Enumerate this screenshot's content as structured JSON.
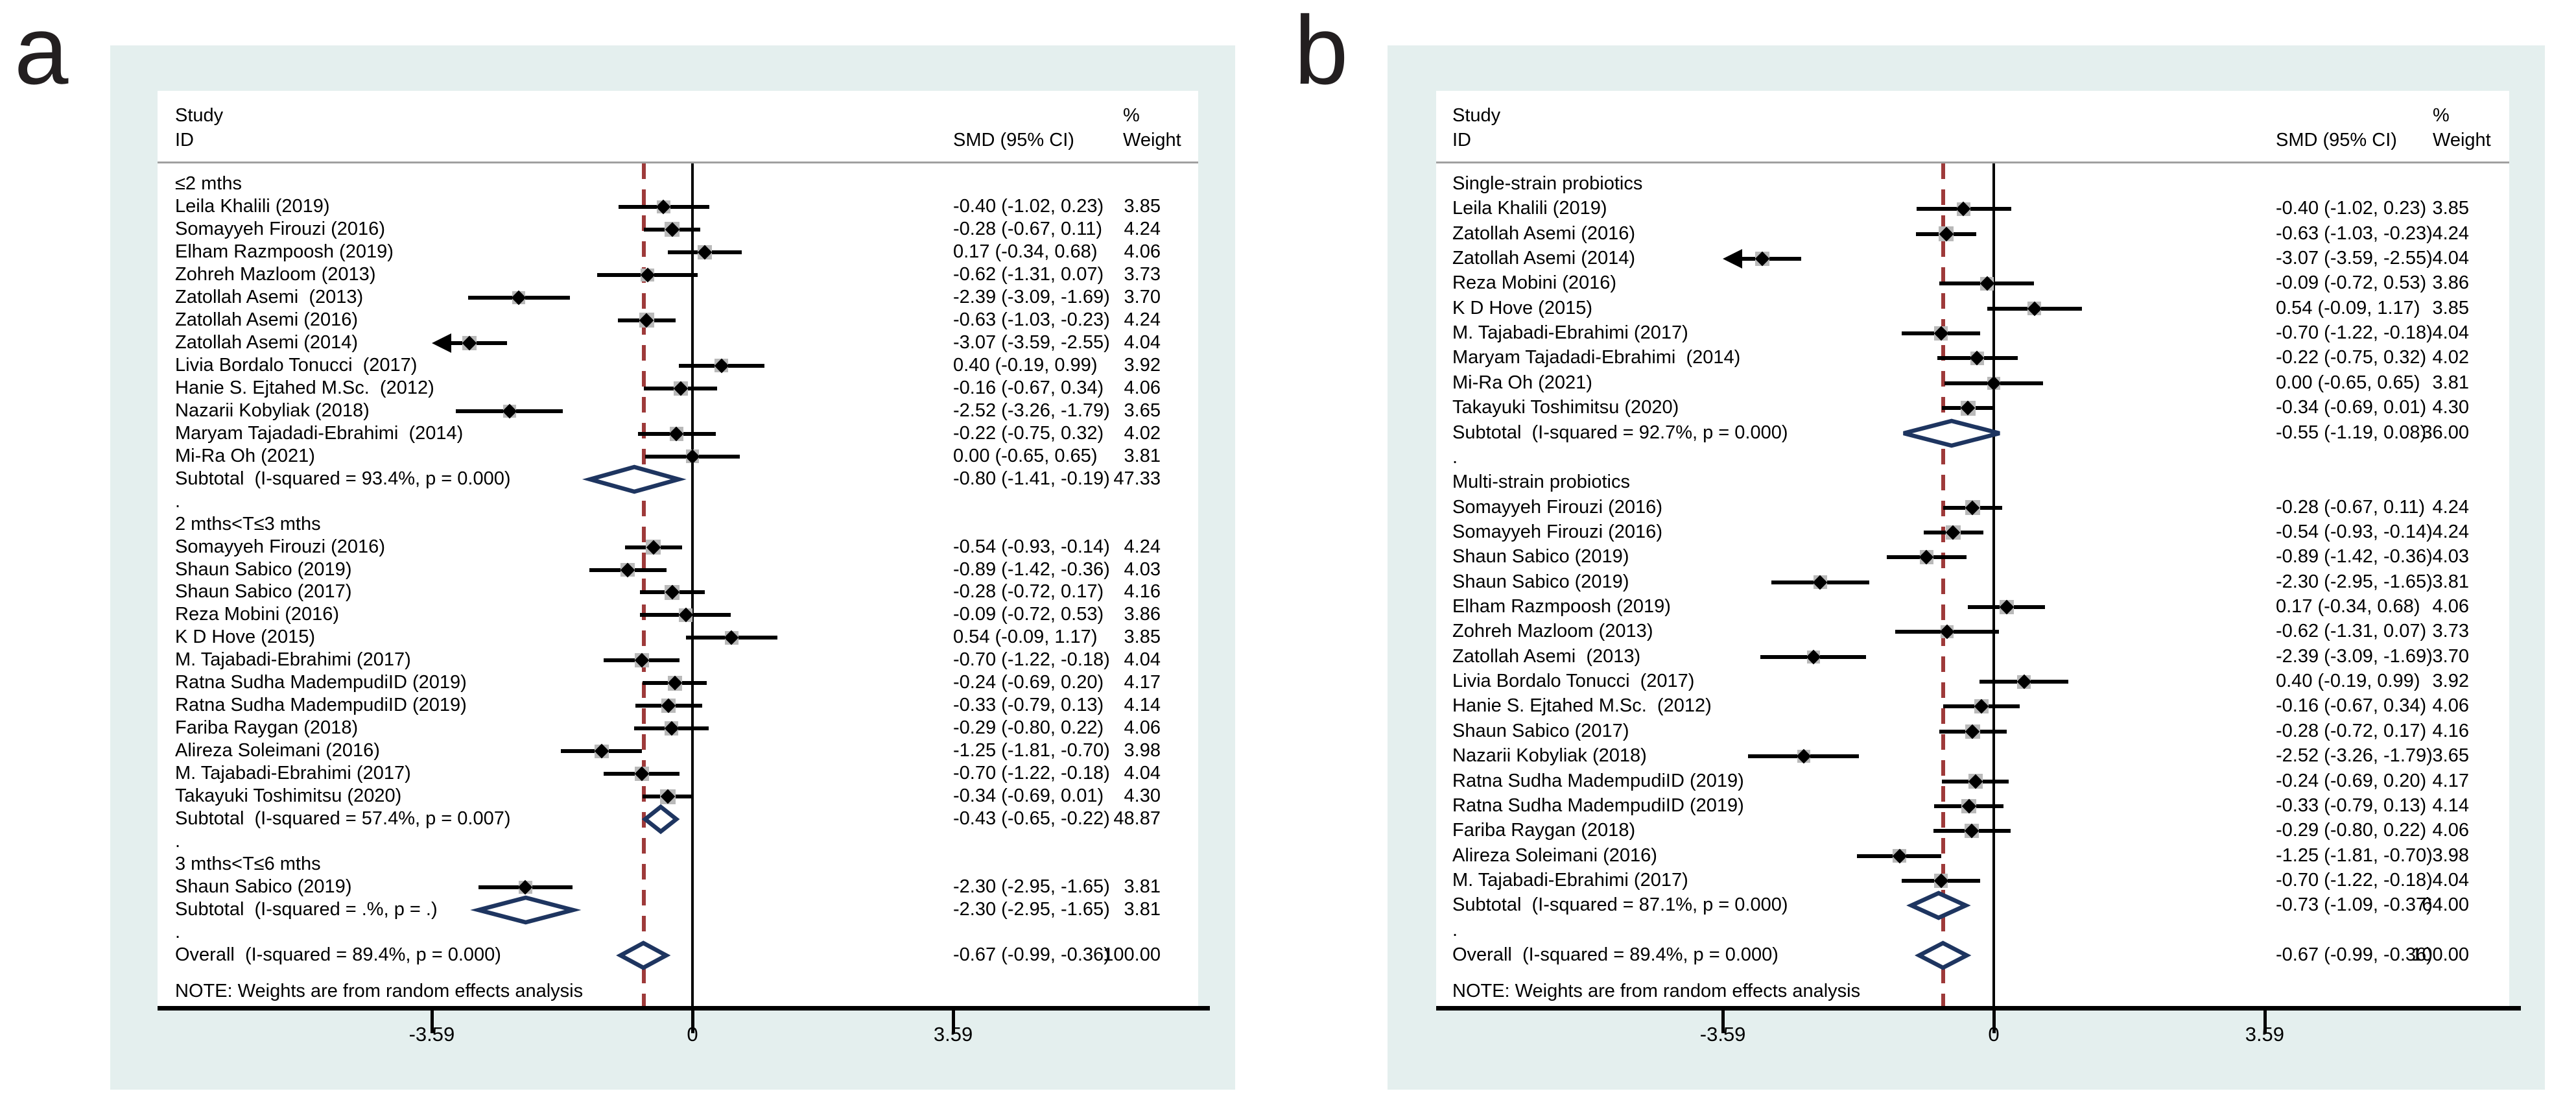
{
  "figure": {
    "panel_letters": [
      "a",
      "b"
    ]
  },
  "chart_data": [
    {
      "type": "forest",
      "panel": "a",
      "header": {
        "study_line1": "Study",
        "study_line2": "ID",
        "pct": "%",
        "smd": "SMD (95% CI)",
        "weight": "Weight"
      },
      "note": "NOTE: Weights are from random effects analysis",
      "axis": {
        "ticks": [
          -3.59,
          0,
          3.59
        ],
        "tick_labels": [
          "-3.59",
          "0",
          "3.59"
        ],
        "null_line": 0,
        "overall_ref_line": -0.67,
        "xlim": [
          -3.59,
          3.59
        ]
      },
      "legend_position": "none",
      "grid": false,
      "rows": [
        {
          "t": "g",
          "label": "≤2 mths"
        },
        {
          "t": "s",
          "label": "Leila Khalili (2019)",
          "est": -0.4,
          "lo": -1.02,
          "hi": 0.23,
          "ci": "-0.40 (-1.02, 0.23)",
          "w": "3.85",
          "wv": 3.85
        },
        {
          "t": "s",
          "label": "Somayyeh Firouzi (2016)",
          "est": -0.28,
          "lo": -0.67,
          "hi": 0.11,
          "ci": "-0.28 (-0.67, 0.11)",
          "w": "4.24",
          "wv": 4.24
        },
        {
          "t": "s",
          "label": "Elham Razmpoosh (2019)",
          "est": 0.17,
          "lo": -0.34,
          "hi": 0.68,
          "ci": "0.17 (-0.34, 0.68)",
          "w": "4.06",
          "wv": 4.06
        },
        {
          "t": "s",
          "label": "Zohreh Mazloom (2013)",
          "est": -0.62,
          "lo": -1.31,
          "hi": 0.07,
          "ci": "-0.62 (-1.31, 0.07)",
          "w": "3.73",
          "wv": 3.73
        },
        {
          "t": "s",
          "label": "Zatollah Asemi  (2013)",
          "est": -2.39,
          "lo": -3.09,
          "hi": -1.69,
          "ci": "-2.39 (-3.09, -1.69)",
          "w": "3.70",
          "wv": 3.7
        },
        {
          "t": "s",
          "label": "Zatollah Asemi (2016)",
          "est": -0.63,
          "lo": -1.03,
          "hi": -0.23,
          "ci": "-0.63 (-1.03, -0.23)",
          "w": "4.24",
          "wv": 4.24
        },
        {
          "t": "s",
          "label": "Zatollah Asemi (2014)",
          "est": -3.07,
          "lo": -3.59,
          "hi": -2.55,
          "ci": "-3.07 (-3.59, -2.55)",
          "w": "4.04",
          "wv": 4.04,
          "arrow": "left"
        },
        {
          "t": "s",
          "label": "Livia Bordalo Tonucci  (2017)",
          "est": 0.4,
          "lo": -0.19,
          "hi": 0.99,
          "ci": "0.40 (-0.19, 0.99)",
          "w": "3.92",
          "wv": 3.92
        },
        {
          "t": "s",
          "label": "Hanie S. Ejtahed M.Sc.  (2012)",
          "est": -0.16,
          "lo": -0.67,
          "hi": 0.34,
          "ci": "-0.16 (-0.67, 0.34)",
          "w": "4.06",
          "wv": 4.06
        },
        {
          "t": "s",
          "label": "Nazarii Kobyliak (2018)",
          "est": -2.52,
          "lo": -3.26,
          "hi": -1.79,
          "ci": "-2.52 (-3.26, -1.79)",
          "w": "3.65",
          "wv": 3.65
        },
        {
          "t": "s",
          "label": "Maryam Tajadadi-Ebrahimi  (2014)",
          "est": -0.22,
          "lo": -0.75,
          "hi": 0.32,
          "ci": "-0.22 (-0.75, 0.32)",
          "w": "4.02",
          "wv": 4.02
        },
        {
          "t": "s",
          "label": "Mi-Ra Oh (2021)",
          "est": 0.0,
          "lo": -0.65,
          "hi": 0.65,
          "ci": "0.00 (-0.65, 0.65)",
          "w": "3.81",
          "wv": 3.81
        },
        {
          "t": "d",
          "label": "Subtotal  (I-squared = 93.4%, p = 0.000)",
          "est": -0.8,
          "lo": -1.41,
          "hi": -0.19,
          "ci": "-0.80 (-1.41, -0.19)",
          "w": "47.33"
        },
        {
          "t": "dot",
          "label": "."
        },
        {
          "t": "g",
          "label": "2 mths<T≤3 mths"
        },
        {
          "t": "s",
          "label": "Somayyeh Firouzi (2016)",
          "est": -0.54,
          "lo": -0.93,
          "hi": -0.14,
          "ci": "-0.54 (-0.93, -0.14)",
          "w": "4.24",
          "wv": 4.24
        },
        {
          "t": "s",
          "label": "Shaun Sabico (2019)",
          "est": -0.89,
          "lo": -1.42,
          "hi": -0.36,
          "ci": "-0.89 (-1.42, -0.36)",
          "w": "4.03",
          "wv": 4.03
        },
        {
          "t": "s",
          "label": "Shaun Sabico (2017)",
          "est": -0.28,
          "lo": -0.72,
          "hi": 0.17,
          "ci": "-0.28 (-0.72, 0.17)",
          "w": "4.16",
          "wv": 4.16
        },
        {
          "t": "s",
          "label": "Reza Mobini (2016)",
          "est": -0.09,
          "lo": -0.72,
          "hi": 0.53,
          "ci": "-0.09 (-0.72, 0.53)",
          "w": "3.86",
          "wv": 3.86
        },
        {
          "t": "s",
          "label": "K D Hove (2015)",
          "est": 0.54,
          "lo": -0.09,
          "hi": 1.17,
          "ci": "0.54 (-0.09, 1.17)",
          "w": "3.85",
          "wv": 3.85
        },
        {
          "t": "s",
          "label": "M. Tajabadi-Ebrahimi (2017)",
          "est": -0.7,
          "lo": -1.22,
          "hi": -0.18,
          "ci": "-0.70 (-1.22, -0.18)",
          "w": "4.04",
          "wv": 4.04
        },
        {
          "t": "s",
          "label": "Ratna Sudha MadempudiID (2019)",
          "est": -0.24,
          "lo": -0.69,
          "hi": 0.2,
          "ci": "-0.24 (-0.69, 0.20)",
          "w": "4.17",
          "wv": 4.17
        },
        {
          "t": "s",
          "label": "Ratna Sudha MadempudiID (2019)",
          "est": -0.33,
          "lo": -0.79,
          "hi": 0.13,
          "ci": "-0.33 (-0.79, 0.13)",
          "w": "4.14",
          "wv": 4.14
        },
        {
          "t": "s",
          "label": "Fariba Raygan (2018)",
          "est": -0.29,
          "lo": -0.8,
          "hi": 0.22,
          "ci": "-0.29 (-0.80, 0.22)",
          "w": "4.06",
          "wv": 4.06
        },
        {
          "t": "s",
          "label": "Alireza Soleimani (2016)",
          "est": -1.25,
          "lo": -1.81,
          "hi": -0.7,
          "ci": "-1.25 (-1.81, -0.70)",
          "w": "3.98",
          "wv": 3.98
        },
        {
          "t": "s",
          "label": "M. Tajabadi-Ebrahimi (2017)",
          "est": -0.7,
          "lo": -1.22,
          "hi": -0.18,
          "ci": "-0.70 (-1.22, -0.18)",
          "w": "4.04",
          "wv": 4.04
        },
        {
          "t": "s",
          "label": "Takayuki Toshimitsu (2020)",
          "est": -0.34,
          "lo": -0.69,
          "hi": 0.01,
          "ci": "-0.34 (-0.69, 0.01)",
          "w": "4.30",
          "wv": 4.3
        },
        {
          "t": "d",
          "label": "Subtotal  (I-squared = 57.4%, p = 0.007)",
          "est": -0.43,
          "lo": -0.65,
          "hi": -0.22,
          "ci": "-0.43 (-0.65, -0.22)",
          "w": "48.87"
        },
        {
          "t": "dot",
          "label": "."
        },
        {
          "t": "g",
          "label": "3 mths<T≤6 mths"
        },
        {
          "t": "s",
          "label": "Shaun Sabico (2019)",
          "est": -2.3,
          "lo": -2.95,
          "hi": -1.65,
          "ci": "-2.30 (-2.95, -1.65)",
          "w": "3.81",
          "wv": 3.81
        },
        {
          "t": "d",
          "label": "Subtotal  (I-squared = .%, p = .)",
          "est": -2.3,
          "lo": -2.95,
          "hi": -1.65,
          "ci": "-2.30 (-2.95, -1.65)",
          "w": "3.81"
        },
        {
          "t": "dot",
          "label": "."
        },
        {
          "t": "o",
          "label": "Overall  (I-squared = 89.4%, p = 0.000)",
          "est": -0.67,
          "lo": -0.99,
          "hi": -0.36,
          "ci": "-0.67 (-0.99, -0.36)",
          "w": "100.00"
        }
      ]
    },
    {
      "type": "forest",
      "panel": "b",
      "header": {
        "study_line1": "Study",
        "study_line2": "ID",
        "pct": "%",
        "smd": "SMD (95% CI)",
        "weight": "Weight"
      },
      "note": "NOTE: Weights are from random effects analysis",
      "axis": {
        "ticks": [
          -3.59,
          0,
          3.59
        ],
        "tick_labels": [
          "-3.59",
          "0",
          "3.59"
        ],
        "null_line": 0,
        "overall_ref_line": -0.67,
        "xlim": [
          -3.59,
          3.59
        ]
      },
      "legend_position": "none",
      "grid": false,
      "rows": [
        {
          "t": "g",
          "label": "Single-strain probiotics"
        },
        {
          "t": "s",
          "label": "Leila Khalili (2019)",
          "est": -0.4,
          "lo": -1.02,
          "hi": 0.23,
          "ci": "-0.40 (-1.02, 0.23)",
          "w": "3.85",
          "wv": 3.85
        },
        {
          "t": "s",
          "label": "Zatollah Asemi (2016)",
          "est": -0.63,
          "lo": -1.03,
          "hi": -0.23,
          "ci": "-0.63 (-1.03, -0.23)",
          "w": "4.24",
          "wv": 4.24
        },
        {
          "t": "s",
          "label": "Zatollah Asemi (2014)",
          "est": -3.07,
          "lo": -3.59,
          "hi": -2.55,
          "ci": "-3.07 (-3.59, -2.55)",
          "w": "4.04",
          "wv": 4.04,
          "arrow": "left"
        },
        {
          "t": "s",
          "label": "Reza Mobini (2016)",
          "est": -0.09,
          "lo": -0.72,
          "hi": 0.53,
          "ci": "-0.09 (-0.72, 0.53)",
          "w": "3.86",
          "wv": 3.86
        },
        {
          "t": "s",
          "label": "K D Hove (2015)",
          "est": 0.54,
          "lo": -0.09,
          "hi": 1.17,
          "ci": "0.54 (-0.09, 1.17)",
          "w": "3.85",
          "wv": 3.85
        },
        {
          "t": "s",
          "label": "M. Tajabadi-Ebrahimi (2017)",
          "est": -0.7,
          "lo": -1.22,
          "hi": -0.18,
          "ci": "-0.70 (-1.22, -0.18)",
          "w": "4.04",
          "wv": 4.04
        },
        {
          "t": "s",
          "label": "Maryam Tajadadi-Ebrahimi  (2014)",
          "est": -0.22,
          "lo": -0.75,
          "hi": 0.32,
          "ci": "-0.22 (-0.75, 0.32)",
          "w": "4.02",
          "wv": 4.02
        },
        {
          "t": "s",
          "label": "Mi-Ra Oh (2021)",
          "est": 0.0,
          "lo": -0.65,
          "hi": 0.65,
          "ci": "0.00 (-0.65, 0.65)",
          "w": "3.81",
          "wv": 3.81
        },
        {
          "t": "s",
          "label": "Takayuki Toshimitsu (2020)",
          "est": -0.34,
          "lo": -0.69,
          "hi": 0.01,
          "ci": "-0.34 (-0.69, 0.01)",
          "w": "4.30",
          "wv": 4.3
        },
        {
          "t": "d",
          "label": "Subtotal  (I-squared = 92.7%, p = 0.000)",
          "est": -0.55,
          "lo": -1.19,
          "hi": 0.08,
          "ci": "-0.55 (-1.19, 0.08)",
          "w": "36.00"
        },
        {
          "t": "dot",
          "label": "."
        },
        {
          "t": "g",
          "label": "Multi-strain probiotics"
        },
        {
          "t": "s",
          "label": "Somayyeh Firouzi (2016)",
          "est": -0.28,
          "lo": -0.67,
          "hi": 0.11,
          "ci": "-0.28 (-0.67, 0.11)",
          "w": "4.24",
          "wv": 4.24
        },
        {
          "t": "s",
          "label": "Somayyeh Firouzi (2016)",
          "est": -0.54,
          "lo": -0.93,
          "hi": -0.14,
          "ci": "-0.54 (-0.93, -0.14)",
          "w": "4.24",
          "wv": 4.24
        },
        {
          "t": "s",
          "label": "Shaun Sabico (2019)",
          "est": -0.89,
          "lo": -1.42,
          "hi": -0.36,
          "ci": "-0.89 (-1.42, -0.36)",
          "w": "4.03",
          "wv": 4.03
        },
        {
          "t": "s",
          "label": "Shaun Sabico (2019)",
          "est": -2.3,
          "lo": -2.95,
          "hi": -1.65,
          "ci": "-2.30 (-2.95, -1.65)",
          "w": "3.81",
          "wv": 3.81
        },
        {
          "t": "s",
          "label": "Elham Razmpoosh (2019)",
          "est": 0.17,
          "lo": -0.34,
          "hi": 0.68,
          "ci": "0.17 (-0.34, 0.68)",
          "w": "4.06",
          "wv": 4.06
        },
        {
          "t": "s",
          "label": "Zohreh Mazloom (2013)",
          "est": -0.62,
          "lo": -1.31,
          "hi": 0.07,
          "ci": "-0.62 (-1.31, 0.07)",
          "w": "3.73",
          "wv": 3.73
        },
        {
          "t": "s",
          "label": "Zatollah Asemi  (2013)",
          "est": -2.39,
          "lo": -3.09,
          "hi": -1.69,
          "ci": "-2.39 (-3.09, -1.69)",
          "w": "3.70",
          "wv": 3.7
        },
        {
          "t": "s",
          "label": "Livia Bordalo Tonucci  (2017)",
          "est": 0.4,
          "lo": -0.19,
          "hi": 0.99,
          "ci": "0.40 (-0.19, 0.99)",
          "w": "3.92",
          "wv": 3.92
        },
        {
          "t": "s",
          "label": "Hanie S. Ejtahed M.Sc.  (2012)",
          "est": -0.16,
          "lo": -0.67,
          "hi": 0.34,
          "ci": "-0.16 (-0.67, 0.34)",
          "w": "4.06",
          "wv": 4.06
        },
        {
          "t": "s",
          "label": "Shaun Sabico (2017)",
          "est": -0.28,
          "lo": -0.72,
          "hi": 0.17,
          "ci": "-0.28 (-0.72, 0.17)",
          "w": "4.16",
          "wv": 4.16
        },
        {
          "t": "s",
          "label": "Nazarii Kobyliak (2018)",
          "est": -2.52,
          "lo": -3.26,
          "hi": -1.79,
          "ci": "-2.52 (-3.26, -1.79)",
          "w": "3.65",
          "wv": 3.65
        },
        {
          "t": "s",
          "label": "Ratna Sudha MadempudiID (2019)",
          "est": -0.24,
          "lo": -0.69,
          "hi": 0.2,
          "ci": "-0.24 (-0.69, 0.20)",
          "w": "4.17",
          "wv": 4.17
        },
        {
          "t": "s",
          "label": "Ratna Sudha MadempudiID (2019)",
          "est": -0.33,
          "lo": -0.79,
          "hi": 0.13,
          "ci": "-0.33 (-0.79, 0.13)",
          "w": "4.14",
          "wv": 4.14
        },
        {
          "t": "s",
          "label": "Fariba Raygan (2018)",
          "est": -0.29,
          "lo": -0.8,
          "hi": 0.22,
          "ci": "-0.29 (-0.80, 0.22)",
          "w": "4.06",
          "wv": 4.06
        },
        {
          "t": "s",
          "label": "Alireza Soleimani (2016)",
          "est": -1.25,
          "lo": -1.81,
          "hi": -0.7,
          "ci": "-1.25 (-1.81, -0.70)",
          "w": "3.98",
          "wv": 3.98
        },
        {
          "t": "s",
          "label": "M. Tajabadi-Ebrahimi (2017)",
          "est": -0.7,
          "lo": -1.22,
          "hi": -0.18,
          "ci": "-0.70 (-1.22, -0.18)",
          "w": "4.04",
          "wv": 4.04
        },
        {
          "t": "d",
          "label": "Subtotal  (I-squared = 87.1%, p = 0.000)",
          "est": -0.73,
          "lo": -1.09,
          "hi": -0.37,
          "ci": "-0.73 (-1.09, -0.37)",
          "w": "64.00"
        },
        {
          "t": "dot",
          "label": "."
        },
        {
          "t": "o",
          "label": "Overall  (I-squared = 89.4%, p = 0.000)",
          "est": -0.67,
          "lo": -0.99,
          "hi": -0.36,
          "ci": "-0.67 (-0.99, -0.36)",
          "w": "100.00"
        }
      ]
    }
  ]
}
